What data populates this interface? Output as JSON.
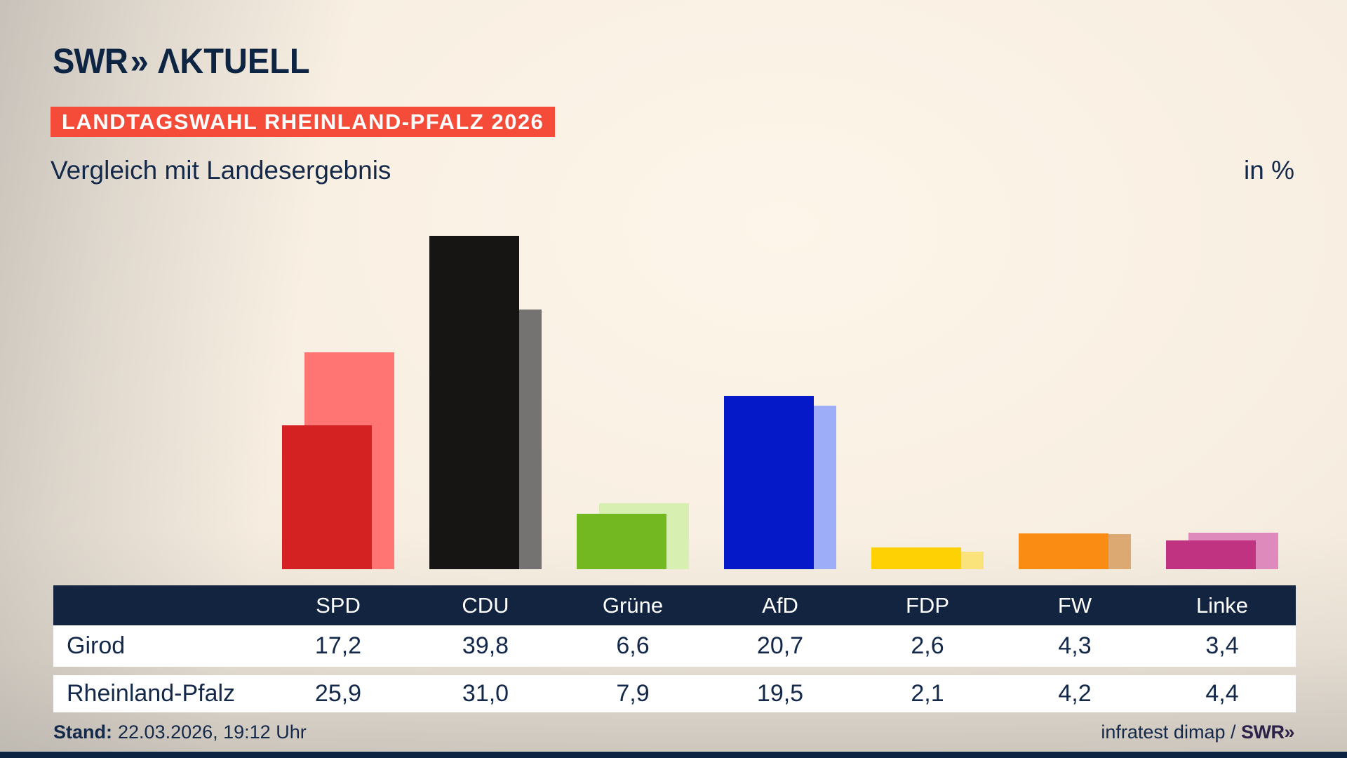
{
  "brand": {
    "swr": "SWR",
    "chevron": "»",
    "aktuell": "ΛKTUELL"
  },
  "badge": {
    "label": "LANDTAGSWAHL RHEINLAND-PFALZ 2026",
    "bg_color": "#f44c38"
  },
  "title": {
    "text": "Vergleich mit Landesergebnis",
    "unit": "in %"
  },
  "chart_data": {
    "type": "bar",
    "title": "Vergleich mit Landesergebnis",
    "unit": "in %",
    "categories": [
      "SPD",
      "CDU",
      "Grüne",
      "AfD",
      "FDP",
      "FW",
      "Linke"
    ],
    "series": [
      {
        "name": "Girod",
        "role": "foreground",
        "values": [
          17.2,
          39.8,
          6.6,
          20.7,
          2.6,
          4.3,
          3.4
        ]
      },
      {
        "name": "Rheinland-Pfalz",
        "role": "background",
        "values": [
          25.9,
          31.0,
          7.9,
          19.5,
          2.1,
          4.2,
          4.4
        ]
      }
    ],
    "party_colors": [
      {
        "party": "SPD",
        "foreground": "#d42222",
        "background": "#ff7573"
      },
      {
        "party": "CDU",
        "foreground": "#161513",
        "background": "#757371"
      },
      {
        "party": "Grüne",
        "foreground": "#74b821",
        "background": "#d7f0b2"
      },
      {
        "party": "AfD",
        "foreground": "#0619c8",
        "background": "#9dadf8"
      },
      {
        "party": "FDP",
        "foreground": "#fed104",
        "background": "#fae37b"
      },
      {
        "party": "FW",
        "foreground": "#fa8c13",
        "background": "#dba971"
      },
      {
        "party": "Linke",
        "foreground": "#bf3381",
        "background": "#de8abc"
      }
    ],
    "ylim": [
      0,
      42
    ],
    "grid": false,
    "legend": "table-rows"
  },
  "table": {
    "rows": [
      {
        "label": "Girod",
        "values": [
          "17,2",
          "39,8",
          "6,6",
          "20,7",
          "2,6",
          "4,3",
          "3,4"
        ]
      },
      {
        "label": "Rheinland-Pfalz",
        "values": [
          "25,9",
          "31,0",
          "7,9",
          "19,5",
          "2,1",
          "4,2",
          "4,4"
        ]
      }
    ]
  },
  "footer": {
    "stand_label": "Stand:",
    "stand_value": "22.03.2026, 19:12 Uhr",
    "source_prefix": "infratest dimap / ",
    "source_brand": "SWR»"
  }
}
